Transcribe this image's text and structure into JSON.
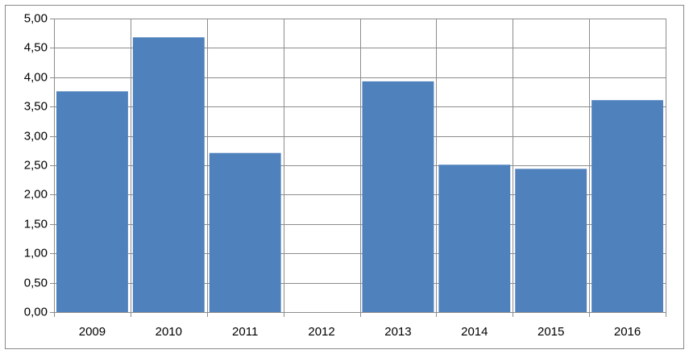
{
  "chart_data": {
    "type": "bar",
    "categories": [
      "2009",
      "2010",
      "2011",
      "2012",
      "2013",
      "2014",
      "2015",
      "2016"
    ],
    "values": [
      3.76,
      4.68,
      2.71,
      null,
      3.93,
      2.51,
      2.44,
      3.61
    ],
    "color": "#4f81bd",
    "ylim": [
      0,
      5
    ],
    "yticks": [
      {
        "value": 0,
        "label": "0,00"
      },
      {
        "value": 0.5,
        "label": "0,50"
      },
      {
        "value": 1,
        "label": "1,00"
      },
      {
        "value": 1.5,
        "label": "1,50"
      },
      {
        "value": 2,
        "label": "2,00"
      },
      {
        "value": 2.5,
        "label": "2,50"
      },
      {
        "value": 3,
        "label": "3,00"
      },
      {
        "value": 3.5,
        "label": "3,50"
      },
      {
        "value": 4,
        "label": "4,00"
      },
      {
        "value": 4.5,
        "label": "4,50"
      },
      {
        "value": 5,
        "label": "5,00"
      }
    ],
    "grid": true
  }
}
